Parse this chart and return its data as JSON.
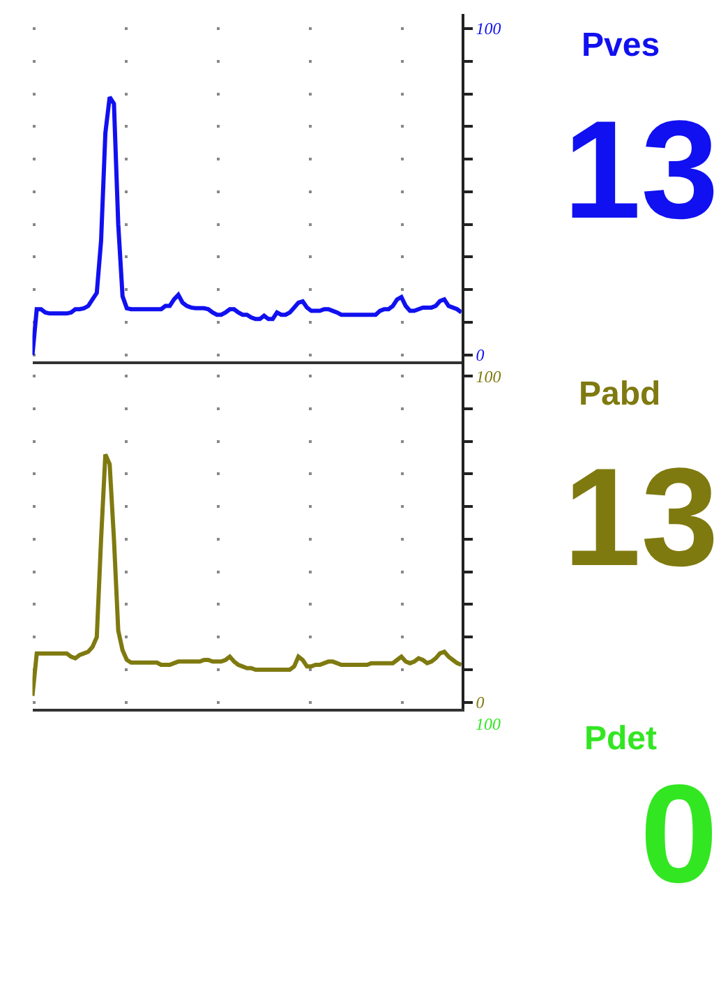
{
  "chart_data": [
    {
      "type": "line",
      "categories": [
        null,
        null,
        null,
        null,
        null,
        null,
        null,
        null,
        null,
        null,
        null,
        null,
        null,
        null,
        null,
        null,
        null,
        null,
        null,
        null,
        null,
        null,
        null,
        null,
        null,
        null,
        null,
        null,
        null,
        null,
        null,
        null,
        null,
        null,
        null,
        null,
        null,
        null,
        null,
        null,
        null,
        null,
        null,
        null,
        null,
        null,
        null,
        null,
        null,
        null,
        null,
        null,
        null,
        null,
        null,
        null,
        null,
        null,
        null,
        null,
        null,
        null,
        null,
        null,
        null,
        null,
        null,
        null,
        null,
        null,
        null,
        null,
        null,
        null,
        null,
        null,
        null,
        null,
        null,
        null,
        null,
        null,
        null,
        null,
        null,
        null,
        null,
        null,
        null,
        null,
        null,
        null,
        null,
        null,
        null,
        null,
        null,
        null,
        null,
        null,
        null
      ],
      "series": [
        {
          "name": "Pves",
          "color": "#1010f0",
          "values": [
            0,
            14,
            14,
            13,
            12.7,
            12.7,
            12.7,
            12.7,
            12.7,
            13,
            14,
            14,
            14.3,
            15,
            17,
            19,
            35,
            68,
            79,
            77,
            40,
            18,
            14.3,
            14,
            14,
            14,
            14,
            14,
            14,
            14,
            14,
            15,
            15,
            17,
            18.4,
            16,
            15,
            14.5,
            14.3,
            14.3,
            14.3,
            14,
            13,
            12.3,
            12.3,
            13,
            14,
            14,
            13,
            12.3,
            12.3,
            11.5,
            11,
            11,
            12,
            11,
            11,
            13,
            12.3,
            12.3,
            13,
            14.5,
            16,
            16.4,
            14.5,
            13.5,
            13.5,
            13.5,
            14,
            14,
            13.5,
            13,
            12.3,
            12.3,
            12.3,
            12.3,
            12.3,
            12.3,
            12.3,
            12.3,
            12.3,
            13.5,
            14,
            14,
            15,
            17,
            17.7,
            15,
            13.5,
            13.5,
            14,
            14.5,
            14.5,
            14.5,
            15,
            16.5,
            17,
            15,
            14.5,
            14,
            13
          ]
        }
      ],
      "ylim": [
        -2,
        104.5
      ],
      "yticks": [
        {
          "value": 0,
          "label": "0"
        },
        {
          "value": 10,
          "label": null
        },
        {
          "value": 20,
          "label": null
        },
        {
          "value": 30,
          "label": null
        },
        {
          "value": 40,
          "label": null
        },
        {
          "value": 50,
          "label": null
        },
        {
          "value": 60,
          "label": null
        },
        {
          "value": 70,
          "label": null
        },
        {
          "value": 80,
          "label": null
        },
        {
          "value": 90,
          "label": null
        },
        {
          "value": 100,
          "label": "100"
        }
      ],
      "grid": "y",
      "tick_labels": "y",
      "line_style": "solid",
      "annotations": [
        "13"
      ]
    },
    {
      "type": "line",
      "categories": [
        null,
        null,
        null,
        null,
        null,
        null,
        null,
        null,
        null,
        null,
        null,
        null,
        null,
        null,
        null,
        null,
        null,
        null,
        null,
        null,
        null,
        null,
        null,
        null,
        null,
        null,
        null,
        null,
        null,
        null,
        null,
        null,
        null,
        null,
        null,
        null,
        null,
        null,
        null,
        null,
        null,
        null,
        null,
        null,
        null,
        null,
        null,
        null,
        null,
        null,
        null,
        null,
        null,
        null,
        null,
        null,
        null,
        null,
        null,
        null,
        null,
        null,
        null,
        null,
        null,
        null,
        null,
        null,
        null,
        null,
        null,
        null,
        null,
        null,
        null,
        null,
        null,
        null,
        null,
        null,
        null,
        null,
        null,
        null,
        null,
        null,
        null,
        null,
        null,
        null,
        null,
        null,
        null,
        null,
        null,
        null,
        null,
        null,
        null,
        null,
        null
      ],
      "series": [
        {
          "name": "Pabd",
          "color": "#7f7a10",
          "values": [
            2,
            15,
            15,
            15,
            15,
            15,
            15,
            15,
            15,
            14,
            13.5,
            14.5,
            15,
            15.5,
            17,
            20,
            50,
            76,
            73,
            50,
            22,
            16,
            13,
            12.2,
            12.2,
            12.2,
            12.2,
            12.2,
            12.2,
            12.2,
            11.5,
            11.5,
            11.5,
            12,
            12.5,
            12.5,
            12.5,
            12.5,
            12.5,
            12.5,
            13,
            13,
            12.5,
            12.5,
            12.5,
            13,
            14,
            12.5,
            11.5,
            11,
            10.5,
            10.5,
            10,
            10,
            10,
            10,
            10,
            10,
            10,
            10,
            10,
            11,
            14,
            13,
            11,
            11,
            11.5,
            11.5,
            12,
            12.5,
            12.5,
            12,
            11.5,
            11.5,
            11.5,
            11.5,
            11.5,
            11.5,
            11.5,
            12,
            12,
            12,
            12,
            12,
            12,
            13,
            14,
            12.5,
            12,
            12.5,
            13.5,
            13,
            12,
            12.5,
            13.5,
            15,
            15.5,
            14,
            13,
            12,
            11.5
          ]
        }
      ],
      "ylim": [
        -2,
        104.5
      ],
      "yticks": [
        {
          "value": 0,
          "label": "0"
        },
        {
          "value": 10,
          "label": null
        },
        {
          "value": 20,
          "label": null
        },
        {
          "value": 30,
          "label": null
        },
        {
          "value": 40,
          "label": null
        },
        {
          "value": 50,
          "label": null
        },
        {
          "value": 60,
          "label": null
        },
        {
          "value": 70,
          "label": null
        },
        {
          "value": 80,
          "label": null
        },
        {
          "value": 90,
          "label": null
        },
        {
          "value": 100,
          "label": "100"
        }
      ],
      "grid": "y",
      "tick_labels": "y",
      "line_style": "solid",
      "annotations": [
        "13"
      ]
    },
    {
      "type": "other",
      "title": "Pdet",
      "color": "#33e622",
      "ylabel": "100",
      "annotations": [
        "0"
      ]
    }
  ]
}
